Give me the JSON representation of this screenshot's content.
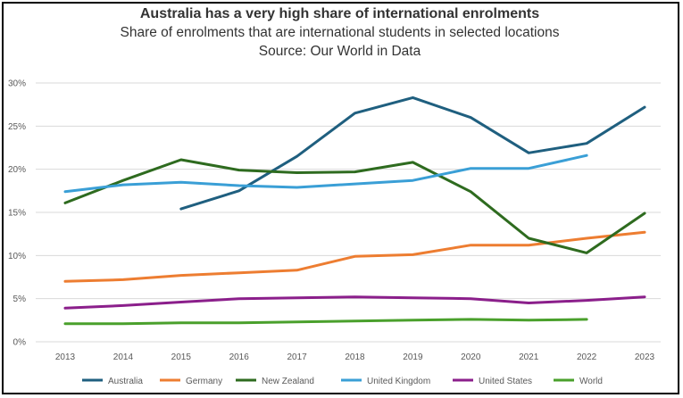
{
  "chart_data": {
    "type": "line",
    "title": "Australia has a very high share of international enrolments",
    "subtitle": "Share of enrolments that are international students in selected locations",
    "source": "Source: Our World in Data",
    "x": [
      "2013",
      "2014",
      "2015",
      "2016",
      "2017",
      "2018",
      "2019",
      "2020",
      "2021",
      "2022",
      "2023"
    ],
    "ylim": [
      0,
      30
    ],
    "yticks": [
      0,
      5,
      10,
      15,
      20,
      25,
      30
    ],
    "ytick_labels": [
      "0%",
      "5%",
      "10%",
      "15%",
      "20%",
      "25%",
      "30%"
    ],
    "grid": true,
    "legend_position": "bottom",
    "series": [
      {
        "name": "Australia",
        "color": "#1f5f7f",
        "values": [
          null,
          null,
          15.4,
          17.5,
          21.5,
          26.5,
          28.3,
          26.0,
          21.9,
          23.0,
          27.2
        ]
      },
      {
        "name": "Germany",
        "color": "#ed7d31",
        "values": [
          7.0,
          7.2,
          7.7,
          8.0,
          8.3,
          9.9,
          10.1,
          11.2,
          11.2,
          12.0,
          12.7
        ]
      },
      {
        "name": "New Zealand",
        "color": "#2e6b1f",
        "values": [
          16.1,
          18.7,
          21.1,
          19.9,
          19.6,
          19.7,
          20.8,
          17.4,
          12.0,
          10.3,
          14.9
        ]
      },
      {
        "name": "United Kingdom",
        "color": "#3a9fd6",
        "values": [
          17.4,
          18.2,
          18.5,
          18.1,
          17.9,
          18.3,
          18.7,
          20.1,
          20.1,
          21.6,
          null
        ]
      },
      {
        "name": "United States",
        "color": "#8b1f8b",
        "values": [
          3.9,
          4.2,
          4.6,
          5.0,
          5.1,
          5.2,
          5.1,
          5.0,
          4.5,
          4.8,
          5.2
        ]
      },
      {
        "name": "World",
        "color": "#4aa02c",
        "values": [
          2.1,
          2.1,
          2.2,
          2.2,
          2.3,
          2.4,
          2.5,
          2.6,
          2.5,
          2.6,
          null
        ]
      }
    ]
  }
}
